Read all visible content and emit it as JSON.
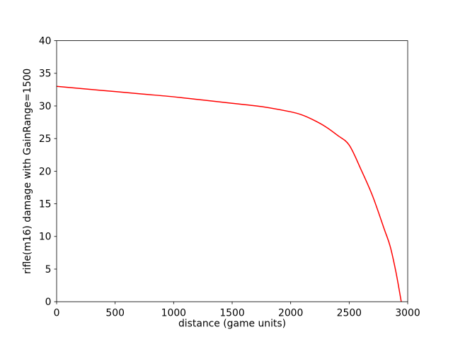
{
  "chart_data": {
    "type": "line",
    "title": "",
    "xlabel": "distance (game units)",
    "ylabel": "rifle(m16) damage with GainRange=1500",
    "xlim": [
      0,
      3000
    ],
    "ylim": [
      0,
      40
    ],
    "xticks": [
      0,
      500,
      1000,
      1500,
      2000,
      2500,
      3000
    ],
    "yticks": [
      0,
      5,
      10,
      15,
      20,
      25,
      30,
      35,
      40
    ],
    "xtick_labels": [
      "0",
      "500",
      "1000",
      "1500",
      "2000",
      "2500",
      "3000"
    ],
    "ytick_labels": [
      "0",
      "5",
      "10",
      "15",
      "20",
      "25",
      "30",
      "35",
      "40"
    ],
    "grid": false,
    "legend": null,
    "series": [
      {
        "color": "#ff0000",
        "line_width": 1.5,
        "points": [
          [
            0,
            33.0
          ],
          [
            250,
            32.6
          ],
          [
            500,
            32.2
          ],
          [
            750,
            31.8
          ],
          [
            1000,
            31.4
          ],
          [
            1250,
            30.9
          ],
          [
            1500,
            30.4
          ],
          [
            1750,
            29.9
          ],
          [
            2000,
            29.1
          ],
          [
            2100,
            28.6
          ],
          [
            2200,
            27.8
          ],
          [
            2300,
            26.8
          ],
          [
            2400,
            25.5
          ],
          [
            2500,
            24.0
          ],
          [
            2600,
            20.3
          ],
          [
            2700,
            16.2
          ],
          [
            2800,
            11.1
          ],
          [
            2850,
            8.5
          ],
          [
            2900,
            4.5
          ],
          [
            2945,
            0.0
          ]
        ]
      }
    ]
  },
  "colors": {
    "background": "#ffffff",
    "axis": "#000000",
    "tick_text": "#000000",
    "line": "#ff0000"
  }
}
